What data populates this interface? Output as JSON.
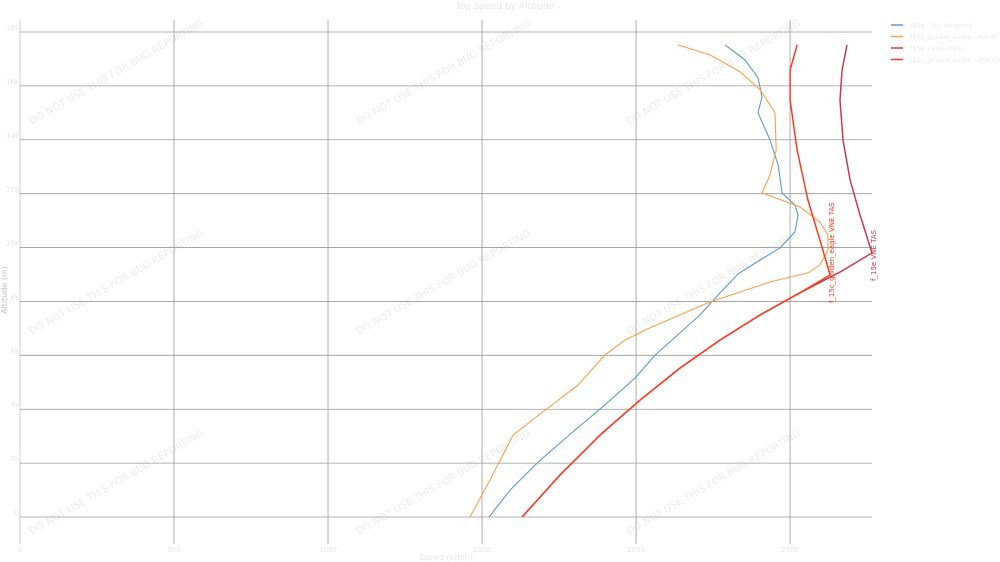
{
  "chart_data": {
    "type": "line",
    "title": "Top Speed by Altitude",
    "xlabel": "Speed (km/h)",
    "ylabel": "Altitude (m)",
    "xlim": [
      0,
      2766
    ],
    "ylim": [
      0,
      18000
    ],
    "x_ticks": [
      0,
      500,
      1000,
      1500,
      2000,
      2500
    ],
    "x_tick_labels": [
      "0",
      "500",
      "1000",
      "1500",
      "2000",
      "2500"
    ],
    "y_ticks": [
      0,
      2000,
      4000,
      6000,
      8000,
      10000,
      12000,
      14000,
      16000,
      18000
    ],
    "y_tick_labels": [
      "0",
      "2k",
      "4k",
      "6k",
      "8k",
      "10k",
      "12k",
      "14k",
      "16k",
      "18k"
    ],
    "grid": true,
    "legend_position": "top-right",
    "series": [
      {
        "name": "f15e - Top Airspeed",
        "color": "#5b9bd5",
        "points": [
          [
            1523,
            0
          ],
          [
            1591,
            1000
          ],
          [
            1688,
            2100
          ],
          [
            1802,
            3230
          ],
          [
            1899,
            4160
          ],
          [
            1997,
            5160
          ],
          [
            2062,
            6010
          ],
          [
            2110,
            6500
          ],
          [
            2208,
            7500
          ],
          [
            2273,
            8320
          ],
          [
            2331,
            9020
          ],
          [
            2403,
            9540
          ],
          [
            2468,
            9990
          ],
          [
            2516,
            10580
          ],
          [
            2526,
            11210
          ],
          [
            2516,
            11580
          ],
          [
            2484,
            11920
          ],
          [
            2474,
            12030
          ],
          [
            2461,
            13070
          ],
          [
            2435,
            13990
          ],
          [
            2396,
            15000
          ],
          [
            2409,
            15590
          ],
          [
            2396,
            16300
          ],
          [
            2354,
            16960
          ],
          [
            2289,
            17520
          ]
        ]
      },
      {
        "name": "f15c_golden_eagle - Top Airspeed",
        "color": "#f7a24a",
        "points": [
          [
            1461,
            0
          ],
          [
            1526,
            1370
          ],
          [
            1601,
            3040
          ],
          [
            1705,
            3970
          ],
          [
            1812,
            4900
          ],
          [
            1899,
            6010
          ],
          [
            1964,
            6570
          ],
          [
            2045,
            7020
          ],
          [
            2143,
            7500
          ],
          [
            2240,
            7980
          ],
          [
            2338,
            8350
          ],
          [
            2435,
            8720
          ],
          [
            2558,
            9060
          ],
          [
            2597,
            9350
          ],
          [
            2623,
            9910
          ],
          [
            2623,
            10470
          ],
          [
            2597,
            10950
          ],
          [
            2532,
            11510
          ],
          [
            2409,
            12030
          ],
          [
            2435,
            12700
          ],
          [
            2455,
            13620
          ],
          [
            2451,
            15000
          ],
          [
            2403,
            15850
          ],
          [
            2338,
            16520
          ],
          [
            2240,
            17150
          ],
          [
            2136,
            17520
          ]
        ]
      },
      {
        "name": "f15e - VNE (TAS)",
        "color": "#cc3a4e",
        "points": [
          [
            1630,
            0
          ],
          [
            1753,
            1560
          ],
          [
            1883,
            3040
          ],
          [
            2013,
            4340
          ],
          [
            2143,
            5530
          ],
          [
            2273,
            6570
          ],
          [
            2403,
            7500
          ],
          [
            2532,
            8320
          ],
          [
            2662,
            9090
          ],
          [
            2766,
            9800
          ],
          [
            2727,
            11210
          ],
          [
            2695,
            12510
          ],
          [
            2672,
            13990
          ],
          [
            2662,
            15480
          ],
          [
            2669,
            16590
          ],
          [
            2685,
            17520
          ]
        ]
      },
      {
        "name": "f15c_golden_eagle - VNE (TAS)",
        "color": "#ff3a1e",
        "points": [
          [
            1630,
            0
          ],
          [
            1753,
            1560
          ],
          [
            1883,
            3040
          ],
          [
            2013,
            4340
          ],
          [
            2143,
            5530
          ],
          [
            2273,
            6570
          ],
          [
            2403,
            7500
          ],
          [
            2532,
            8320
          ],
          [
            2630,
            8980
          ],
          [
            2597,
            10280
          ],
          [
            2558,
            11770
          ],
          [
            2523,
            13620
          ],
          [
            2500,
            15480
          ],
          [
            2500,
            16590
          ],
          [
            2523,
            17520
          ]
        ]
      }
    ],
    "annotations": [
      {
        "text": "f_15c_golden_eagle VNE TAS",
        "x": 2630,
        "y": 8980,
        "color": "#ff3a1e"
      },
      {
        "text": "f_15e VNE TAS",
        "x": 2766,
        "y": 9800,
        "color": "#cc3a4e"
      }
    ]
  },
  "watermark": "DO NOT USE THIS FOR BUG REPORTING"
}
